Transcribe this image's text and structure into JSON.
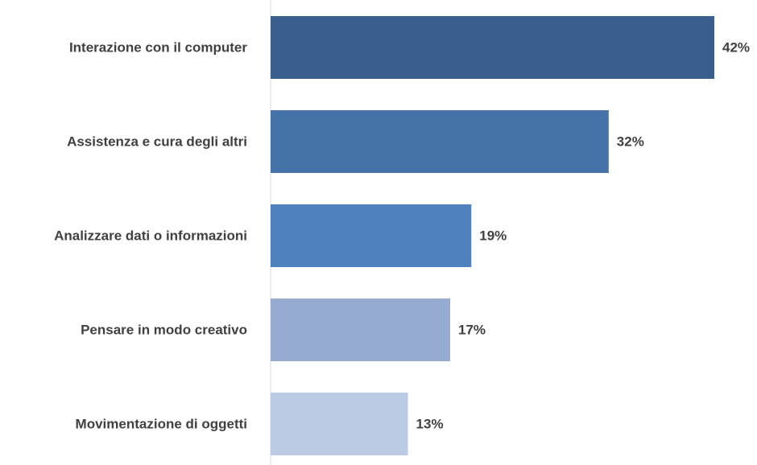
{
  "chart_data": {
    "type": "bar",
    "orientation": "horizontal",
    "categories": [
      "Interazione con il computer",
      "Assistenza e cura degli altri",
      "Analizzare dati o informazioni",
      "Pensare in modo creativo",
      "Movimentazione di oggetti"
    ],
    "values": [
      42,
      32,
      19,
      17,
      13
    ],
    "value_labels": [
      "42%",
      "32%",
      "19%",
      "17%",
      "13%"
    ],
    "unit": "%",
    "title": "",
    "xlabel": "",
    "ylabel": "",
    "xlim": [
      0,
      42
    ],
    "grid": false,
    "legend": "none",
    "colors": [
      "#3a5f8f",
      "#4572a7",
      "#4f81bd",
      "#95abd2",
      "#bccae3"
    ]
  }
}
